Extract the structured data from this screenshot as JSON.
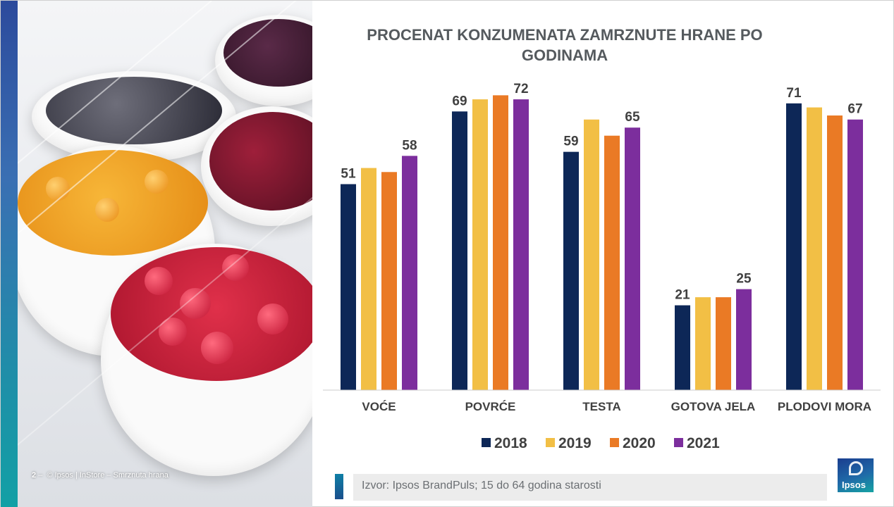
{
  "footer": {
    "page_number": "2",
    "dash": "–",
    "copyright": "© Ipsos | InStore – Smrznuta hrana"
  },
  "source": "Izvor: Ipsos BrandPuls; 15 do 64 godina starosti",
  "logo": "Ipsos",
  "colors": {
    "2018": "#0d2757",
    "2019": "#f2bf45",
    "2020": "#ea7a25",
    "2021": "#7c2e9d",
    "axis": "#cccccc",
    "label": "#404040"
  },
  "chart_data": {
    "type": "bar",
    "title": "PROCENAT KONZUMENATA ZAMRZNUTE HRANE PO GODINAMA",
    "categories": [
      "VOĆE",
      "POVRĆE",
      "TESTA",
      "GOTOVA JELA",
      "PLODOVI MORA"
    ],
    "series": [
      {
        "name": "2018",
        "values": [
          51,
          69,
          59,
          21,
          71
        ],
        "labels": [
          "51",
          "69",
          "59",
          "21",
          "71"
        ]
      },
      {
        "name": "2019",
        "values": [
          55,
          72,
          67,
          23,
          70
        ],
        "labels": [
          "",
          "",
          "",
          "",
          ""
        ]
      },
      {
        "name": "2020",
        "values": [
          54,
          73,
          63,
          23,
          68
        ],
        "labels": [
          "",
          "",
          "",
          "",
          ""
        ]
      },
      {
        "name": "2021",
        "values": [
          58,
          72,
          65,
          25,
          67
        ],
        "labels": [
          "58",
          "72",
          "65",
          "25",
          "67"
        ]
      }
    ],
    "ylim": [
      0,
      80
    ],
    "legend_position": "bottom"
  }
}
